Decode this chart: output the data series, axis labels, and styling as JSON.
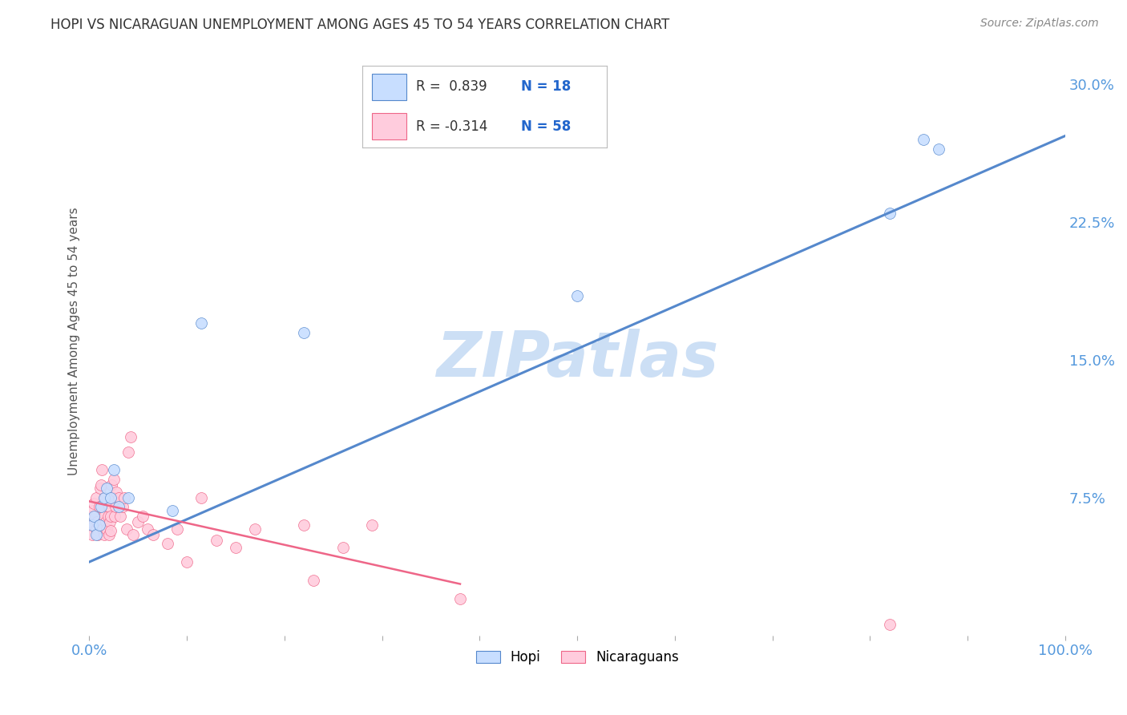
{
  "title": "HOPI VS NICARAGUAN UNEMPLOYMENT AMONG AGES 45 TO 54 YEARS CORRELATION CHART",
  "source": "Source: ZipAtlas.com",
  "ylabel": "Unemployment Among Ages 45 to 54 years",
  "xlim": [
    0.0,
    1.0
  ],
  "ylim": [
    0.0,
    0.32
  ],
  "xticks": [
    0.0,
    0.1,
    0.2,
    0.3,
    0.4,
    0.5,
    0.6,
    0.7,
    0.8,
    0.9,
    1.0
  ],
  "xticklabels": [
    "0.0%",
    "",
    "",
    "",
    "",
    "",
    "",
    "",
    "",
    "",
    "100.0%"
  ],
  "yticks": [
    0.0,
    0.075,
    0.15,
    0.225,
    0.3
  ],
  "yticklabels": [
    "",
    "7.5%",
    "15.0%",
    "22.5%",
    "30.0%"
  ],
  "grid_color": "#d0d0d0",
  "background_color": "#ffffff",
  "title_color": "#333333",
  "axis_color": "#5599dd",
  "hopi_fill_color": "#c8deff",
  "hopi_edge_color": "#5588cc",
  "nicaraguan_fill_color": "#ffccdd",
  "nicaraguan_edge_color": "#ee6688",
  "legend_hopi_r": " 0.839",
  "legend_hopi_n": "18",
  "legend_nicaraguan_r": "-0.314",
  "legend_nicaraguan_n": "58",
  "hopi_x": [
    0.003,
    0.005,
    0.007,
    0.01,
    0.012,
    0.015,
    0.018,
    0.022,
    0.025,
    0.03,
    0.04,
    0.085,
    0.115,
    0.22,
    0.5,
    0.82,
    0.855,
    0.87
  ],
  "hopi_y": [
    0.06,
    0.065,
    0.055,
    0.06,
    0.07,
    0.075,
    0.08,
    0.075,
    0.09,
    0.07,
    0.075,
    0.068,
    0.17,
    0.165,
    0.185,
    0.23,
    0.27,
    0.265
  ],
  "nicaraguan_x": [
    0.002,
    0.003,
    0.004,
    0.005,
    0.005,
    0.006,
    0.007,
    0.007,
    0.008,
    0.009,
    0.01,
    0.01,
    0.011,
    0.012,
    0.013,
    0.014,
    0.015,
    0.015,
    0.016,
    0.017,
    0.018,
    0.019,
    0.02,
    0.02,
    0.021,
    0.022,
    0.022,
    0.023,
    0.024,
    0.025,
    0.026,
    0.027,
    0.028,
    0.03,
    0.032,
    0.034,
    0.036,
    0.038,
    0.04,
    0.042,
    0.045,
    0.05,
    0.055,
    0.06,
    0.065,
    0.08,
    0.09,
    0.1,
    0.115,
    0.13,
    0.15,
    0.17,
    0.22,
    0.23,
    0.26,
    0.29,
    0.38,
    0.82
  ],
  "nicaraguan_y": [
    0.065,
    0.055,
    0.068,
    0.072,
    0.06,
    0.065,
    0.058,
    0.075,
    0.062,
    0.055,
    0.07,
    0.06,
    0.08,
    0.082,
    0.09,
    0.058,
    0.065,
    0.055,
    0.075,
    0.062,
    0.058,
    0.065,
    0.07,
    0.055,
    0.062,
    0.065,
    0.057,
    0.082,
    0.075,
    0.085,
    0.065,
    0.07,
    0.078,
    0.075,
    0.065,
    0.07,
    0.075,
    0.058,
    0.1,
    0.108,
    0.055,
    0.062,
    0.065,
    0.058,
    0.055,
    0.05,
    0.058,
    0.04,
    0.075,
    0.052,
    0.048,
    0.058,
    0.06,
    0.03,
    0.048,
    0.06,
    0.02,
    0.006
  ],
  "hopi_line_x": [
    0.0,
    1.0
  ],
  "hopi_line_y": [
    0.04,
    0.272
  ],
  "nicaraguan_line_x": [
    0.0,
    0.38
  ],
  "nicaraguan_line_y": [
    0.073,
    0.028
  ],
  "watermark": "ZIPatlas",
  "watermark_color": "#ccdff5",
  "marker_size": 100
}
